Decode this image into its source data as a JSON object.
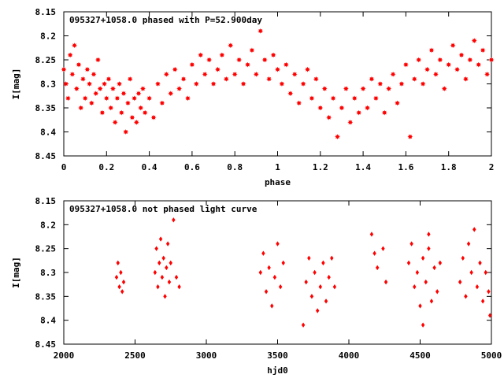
{
  "chart_data": [
    {
      "type": "scatter",
      "title": "095327+1058.0 phased with P=52.900day",
      "xlabel": "phase",
      "ylabel": "I[mag]",
      "xlim": [
        0,
        2
      ],
      "ylim": [
        8.45,
        8.15
      ],
      "y_inverted": true,
      "xticks": [
        0,
        0.2,
        0.4,
        0.6,
        0.8,
        1,
        1.2,
        1.4,
        1.6,
        1.8,
        2
      ],
      "xtick_labels": [
        "0",
        "0.2",
        "0.4",
        "0.6",
        "0.8",
        "1",
        "1.2",
        "1.4",
        "1.6",
        "1.8",
        "2"
      ],
      "yticks": [
        8.15,
        8.2,
        8.25,
        8.3,
        8.35,
        8.4,
        8.45
      ],
      "ytick_labels": [
        "8.15",
        "8.2",
        "8.25",
        "8.3",
        "8.35",
        "8.4",
        "8.45"
      ],
      "grid": false,
      "legend": "none",
      "marker_color": "#ff0000",
      "marker": "filled-star",
      "series": [
        {
          "points": [
            [
              0.0,
              8.27
            ],
            [
              0.01,
              8.3
            ],
            [
              0.02,
              8.33
            ],
            [
              0.03,
              8.24
            ],
            [
              0.04,
              8.28
            ],
            [
              0.05,
              8.22
            ],
            [
              0.06,
              8.31
            ],
            [
              0.07,
              8.26
            ],
            [
              0.08,
              8.35
            ],
            [
              0.09,
              8.29
            ],
            [
              0.1,
              8.33
            ],
            [
              0.11,
              8.27
            ],
            [
              0.12,
              8.3
            ],
            [
              0.13,
              8.34
            ],
            [
              0.14,
              8.28
            ],
            [
              0.15,
              8.32
            ],
            [
              0.16,
              8.25
            ],
            [
              0.17,
              8.31
            ],
            [
              0.18,
              8.36
            ],
            [
              0.19,
              8.3
            ],
            [
              0.2,
              8.33
            ],
            [
              0.21,
              8.29
            ],
            [
              0.22,
              8.35
            ],
            [
              0.23,
              8.31
            ],
            [
              0.24,
              8.38
            ],
            [
              0.25,
              8.33
            ],
            [
              0.26,
              8.3
            ],
            [
              0.27,
              8.36
            ],
            [
              0.28,
              8.32
            ],
            [
              0.29,
              8.4
            ],
            [
              0.3,
              8.34
            ],
            [
              0.31,
              8.29
            ],
            [
              0.32,
              8.37
            ],
            [
              0.33,
              8.33
            ],
            [
              0.34,
              8.38
            ],
            [
              0.35,
              8.32
            ],
            [
              0.36,
              8.35
            ],
            [
              0.37,
              8.31
            ],
            [
              0.38,
              8.36
            ],
            [
              0.4,
              8.33
            ],
            [
              0.42,
              8.37
            ],
            [
              0.44,
              8.3
            ],
            [
              0.46,
              8.34
            ],
            [
              0.48,
              8.28
            ],
            [
              0.5,
              8.32
            ],
            [
              0.52,
              8.27
            ],
            [
              0.54,
              8.31
            ],
            [
              0.56,
              8.29
            ],
            [
              0.58,
              8.33
            ],
            [
              0.6,
              8.26
            ],
            [
              0.62,
              8.3
            ],
            [
              0.64,
              8.24
            ],
            [
              0.66,
              8.28
            ],
            [
              0.68,
              8.25
            ],
            [
              0.7,
              8.3
            ],
            [
              0.72,
              8.27
            ],
            [
              0.74,
              8.24
            ],
            [
              0.76,
              8.29
            ],
            [
              0.78,
              8.22
            ],
            [
              0.8,
              8.28
            ],
            [
              0.82,
              8.25
            ],
            [
              0.84,
              8.3
            ],
            [
              0.86,
              8.26
            ],
            [
              0.88,
              8.23
            ],
            [
              0.9,
              8.28
            ],
            [
              0.92,
              8.19
            ],
            [
              0.94,
              8.25
            ],
            [
              0.96,
              8.29
            ],
            [
              0.98,
              8.24
            ],
            [
              1.0,
              8.27
            ],
            [
              1.02,
              8.3
            ],
            [
              1.04,
              8.26
            ],
            [
              1.06,
              8.32
            ],
            [
              1.08,
              8.28
            ],
            [
              1.1,
              8.34
            ],
            [
              1.12,
              8.3
            ],
            [
              1.14,
              8.27
            ],
            [
              1.16,
              8.33
            ],
            [
              1.18,
              8.29
            ],
            [
              1.2,
              8.35
            ],
            [
              1.22,
              8.31
            ],
            [
              1.24,
              8.37
            ],
            [
              1.26,
              8.33
            ],
            [
              1.28,
              8.41
            ],
            [
              1.3,
              8.35
            ],
            [
              1.32,
              8.31
            ],
            [
              1.34,
              8.38
            ],
            [
              1.36,
              8.33
            ],
            [
              1.38,
              8.36
            ],
            [
              1.4,
              8.31
            ],
            [
              1.42,
              8.35
            ],
            [
              1.44,
              8.29
            ],
            [
              1.46,
              8.33
            ],
            [
              1.48,
              8.3
            ],
            [
              1.5,
              8.36
            ],
            [
              1.52,
              8.31
            ],
            [
              1.54,
              8.28
            ],
            [
              1.56,
              8.34
            ],
            [
              1.58,
              8.3
            ],
            [
              1.6,
              8.26
            ],
            [
              1.62,
              8.41
            ],
            [
              1.64,
              8.29
            ],
            [
              1.66,
              8.25
            ],
            [
              1.68,
              8.3
            ],
            [
              1.7,
              8.27
            ],
            [
              1.72,
              8.23
            ],
            [
              1.74,
              8.28
            ],
            [
              1.76,
              8.25
            ],
            [
              1.78,
              8.31
            ],
            [
              1.8,
              8.26
            ],
            [
              1.82,
              8.22
            ],
            [
              1.84,
              8.27
            ],
            [
              1.86,
              8.24
            ],
            [
              1.88,
              8.29
            ],
            [
              1.9,
              8.25
            ],
            [
              1.92,
              8.21
            ],
            [
              1.94,
              8.26
            ],
            [
              1.96,
              8.23
            ],
            [
              1.98,
              8.28
            ],
            [
              2.0,
              8.25
            ]
          ]
        }
      ]
    },
    {
      "type": "scatter",
      "title": "095327+1058.0 not phased light curve",
      "xlabel": "hjd0",
      "ylabel": "I[mag]",
      "xlim": [
        2000,
        5000
      ],
      "ylim": [
        8.45,
        8.15
      ],
      "y_inverted": true,
      "xticks": [
        2000,
        2500,
        3000,
        3500,
        4000,
        4500,
        5000
      ],
      "xtick_labels": [
        "2000",
        "2500",
        "3000",
        "3500",
        "4000",
        "4500",
        "5000"
      ],
      "yticks": [
        8.15,
        8.2,
        8.25,
        8.3,
        8.35,
        8.4,
        8.45
      ],
      "ytick_labels": [
        "8.15",
        "8.2",
        "8.25",
        "8.3",
        "8.35",
        "8.4",
        "8.45"
      ],
      "grid": false,
      "legend": "none",
      "marker_color": "#ff0000",
      "marker": "diamond",
      "series": [
        {
          "points": [
            [
              2370,
              8.31
            ],
            [
              2380,
              8.28
            ],
            [
              2390,
              8.33
            ],
            [
              2400,
              8.3
            ],
            [
              2410,
              8.34
            ],
            [
              2420,
              8.32
            ],
            [
              2640,
              8.3
            ],
            [
              2650,
              8.25
            ],
            [
              2660,
              8.33
            ],
            [
              2670,
              8.28
            ],
            [
              2680,
              8.23
            ],
            [
              2690,
              8.31
            ],
            [
              2700,
              8.27
            ],
            [
              2710,
              8.35
            ],
            [
              2720,
              8.29
            ],
            [
              2730,
              8.24
            ],
            [
              2740,
              8.32
            ],
            [
              2750,
              8.28
            ],
            [
              2770,
              8.19
            ],
            [
              2790,
              8.31
            ],
            [
              2810,
              8.33
            ],
            [
              3380,
              8.3
            ],
            [
              3400,
              8.26
            ],
            [
              3420,
              8.34
            ],
            [
              3440,
              8.29
            ],
            [
              3460,
              8.37
            ],
            [
              3480,
              8.31
            ],
            [
              3500,
              8.24
            ],
            [
              3520,
              8.33
            ],
            [
              3540,
              8.28
            ],
            [
              3680,
              8.41
            ],
            [
              3700,
              8.32
            ],
            [
              3720,
              8.27
            ],
            [
              3740,
              8.35
            ],
            [
              3760,
              8.3
            ],
            [
              3780,
              8.38
            ],
            [
              3800,
              8.33
            ],
            [
              3820,
              8.28
            ],
            [
              3840,
              8.36
            ],
            [
              3860,
              8.31
            ],
            [
              3880,
              8.27
            ],
            [
              3900,
              8.33
            ],
            [
              4160,
              8.22
            ],
            [
              4180,
              8.26
            ],
            [
              4200,
              8.29
            ],
            [
              4240,
              8.25
            ],
            [
              4260,
              8.32
            ],
            [
              4420,
              8.28
            ],
            [
              4440,
              8.24
            ],
            [
              4460,
              8.33
            ],
            [
              4480,
              8.3
            ],
            [
              4500,
              8.37
            ],
            [
              4520,
              8.27
            ],
            [
              4540,
              8.32
            ],
            [
              4560,
              8.25
            ],
            [
              4580,
              8.36
            ],
            [
              4600,
              8.29
            ],
            [
              4620,
              8.34
            ],
            [
              4640,
              8.28
            ],
            [
              4520,
              8.41
            ],
            [
              4560,
              8.22
            ],
            [
              4780,
              8.32
            ],
            [
              4800,
              8.27
            ],
            [
              4820,
              8.35
            ],
            [
              4840,
              8.24
            ],
            [
              4860,
              8.3
            ],
            [
              4880,
              8.21
            ],
            [
              4900,
              8.33
            ],
            [
              4920,
              8.28
            ],
            [
              4940,
              8.36
            ],
            [
              4960,
              8.3
            ],
            [
              4980,
              8.34
            ],
            [
              4990,
              8.39
            ]
          ]
        }
      ]
    }
  ]
}
